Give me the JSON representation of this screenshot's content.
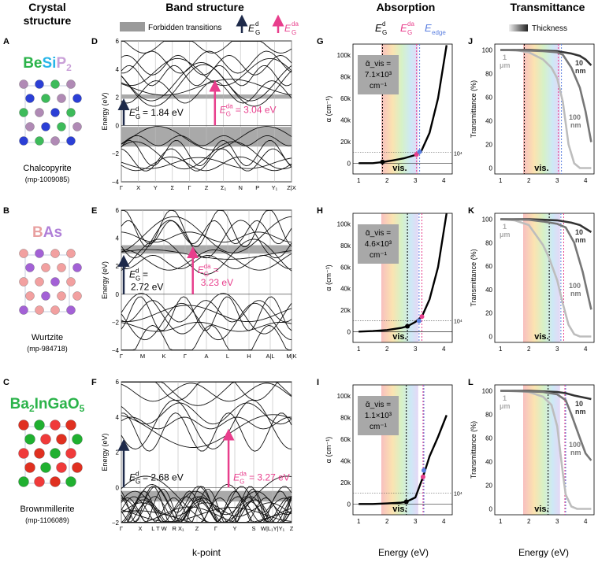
{
  "headers": {
    "crystal": [
      "Crystal",
      "structure"
    ],
    "band": "Band structure",
    "absorption": "Absorption",
    "transmittance": "Transmittance"
  },
  "legend": {
    "forbidden": "Forbidden transitions",
    "eg_d": "E_G^d",
    "eg_da": "E_G^da",
    "e_edge": "E_edge",
    "thickness": "Thickness"
  },
  "colors": {
    "pink": "#e83e8c",
    "navy": "#1e2a4a",
    "blue": "#5b7fe0",
    "gray_band": "#9a9a9a"
  },
  "materials": [
    {
      "letter": "A",
      "formula_parts": [
        [
          "Be",
          "#2bb34a"
        ],
        [
          "Si",
          "#28b5e8"
        ],
        [
          "P",
          "#c9a0d8"
        ],
        [
          "2",
          "#c9a0d8"
        ]
      ],
      "structure": "Chalcopyrite",
      "mp_id": "(mp-1009085)",
      "band_letter": "D",
      "abs_letter": "G",
      "trans_letter": "J",
      "eg_d_text": "= 1.84 eV",
      "eg_da_text": "= 3.04 eV",
      "alpha_lines": [
        "ᾱ_vis =",
        "7.1×10³",
        "cm⁻¹"
      ],
      "ylim": [
        -4,
        6
      ],
      "yticks": [
        "6",
        "4",
        "2",
        "0",
        "−2",
        "−4"
      ],
      "kpoints": [
        "Γ",
        "X",
        "Y",
        "Σ",
        "Γ",
        "Z",
        "Σ₁",
        "N",
        "P",
        "Y₁",
        "Z|X"
      ],
      "eg_d": 1.84,
      "eg_da": 3.04,
      "e_edge": 3.15
    },
    {
      "letter": "B",
      "formula_parts": [
        [
          "B",
          "#e8a0a0"
        ],
        [
          "As",
          "#b07fd8"
        ]
      ],
      "structure": "Wurtzite",
      "mp_id": "(mp-984718)",
      "band_letter": "E",
      "abs_letter": "H",
      "trans_letter": "K",
      "eg_d_text": "=",
      "eg_d_text2": "2.72 eV",
      "eg_da_text": "=",
      "eg_da_text2": "3.23 eV",
      "alpha_lines": [
        "ᾱ_vis =",
        "4.6×10³",
        "cm⁻¹"
      ],
      "ylim": [
        -4,
        6
      ],
      "yticks": [
        "6",
        "4",
        "2",
        "0",
        "−2",
        "−4"
      ],
      "kpoints": [
        "Γ",
        "M",
        "K",
        "Γ",
        "A",
        "L",
        "H",
        "A|L",
        "M|K"
      ],
      "eg_d": 2.72,
      "eg_da": 3.23,
      "e_edge": 3.13
    },
    {
      "letter": "C",
      "formula_parts": [
        [
          "Ba",
          "#2bb34a"
        ],
        [
          "2",
          "#2bb34a"
        ],
        [
          "InGaO",
          "#2bb34a"
        ],
        [
          "5",
          "#2bb34a"
        ]
      ],
      "structure": "Brownmillerite",
      "mp_id": "(mp-1106089)",
      "band_letter": "F",
      "abs_letter": "I",
      "trans_letter": "L",
      "eg_d_text": "= 2.68 eV",
      "eg_da_text": "= 3.27 eV",
      "alpha_lines": [
        "ᾱ_vis =",
        "1.1×10³",
        "cm⁻¹"
      ],
      "ylim": [
        -2,
        6
      ],
      "yticks": [
        "6",
        "4",
        "2",
        "0",
        "−2"
      ],
      "kpoints": [
        "Γ",
        "X",
        "L T W",
        "R X₁",
        "Z",
        "Γ",
        "Y",
        "S",
        "W|L₁Y|Y₁",
        "Z"
      ],
      "eg_d": 2.68,
      "eg_da": 3.27,
      "e_edge": 3.3
    }
  ],
  "axes": {
    "band_ylabel": "Energy (eV)",
    "band_xlabel": "k-point",
    "abs_ylabel": "α (cm⁻¹)",
    "abs_yticks": [
      "100k",
      "80k",
      "60k",
      "40k",
      "20k",
      "0"
    ],
    "abs_ref": "10⁴",
    "trans_ylabel": "Transmittance (%)",
    "trans_yticks": [
      "100",
      "80",
      "60",
      "40",
      "20",
      "0"
    ],
    "energy_xlabel": "Energy (eV)",
    "energy_xticks": [
      "1",
      "2",
      "3",
      "4"
    ],
    "vis": "vis."
  },
  "thickness_labels": [
    [
      "1",
      "μm"
    ],
    [
      "10",
      "nm"
    ],
    [
      "100",
      "nm"
    ]
  ],
  "chart_data": [
    {
      "type": "line",
      "panel": "G",
      "title": "Absorption",
      "xlabel": "Energy (eV)",
      "ylabel": "α (cm⁻¹)",
      "xlim": [
        0.8,
        4.3
      ],
      "ylim": [
        -10000,
        110000
      ],
      "series": [
        {
          "x": [
            1,
            1.5,
            1.84,
            2.2,
            2.6,
            3.0,
            3.2,
            3.5,
            3.8,
            4.1
          ],
          "values": [
            0,
            0,
            1000,
            2500,
            4500,
            7500,
            10500,
            28000,
            60000,
            109000
          ]
        }
      ]
    },
    {
      "type": "line",
      "panel": "H",
      "title": "Absorption",
      "xlabel": "Energy (eV)",
      "ylabel": "α (cm⁻¹)",
      "xlim": [
        0.8,
        4.3
      ],
      "ylim": [
        -10000,
        110000
      ],
      "series": [
        {
          "x": [
            1,
            1.5,
            2.0,
            2.5,
            2.72,
            3.0,
            3.23,
            3.5,
            3.8,
            4.1
          ],
          "values": [
            0,
            500,
            1500,
            3500,
            5000,
            9000,
            14000,
            30000,
            60000,
            110000
          ]
        }
      ]
    },
    {
      "type": "line",
      "panel": "I",
      "title": "Absorption",
      "xlabel": "Energy (eV)",
      "ylabel": "α (cm⁻¹)",
      "xlim": [
        0.8,
        4.3
      ],
      "ylim": [
        -10000,
        110000
      ],
      "series": [
        {
          "x": [
            1,
            1.5,
            2.0,
            2.5,
            2.68,
            3.0,
            3.27,
            3.5,
            3.8,
            4.1
          ],
          "values": [
            0,
            0,
            500,
            1200,
            2000,
            6000,
            25000,
            44000,
            62000,
            82000
          ]
        }
      ]
    },
    {
      "type": "line",
      "panel": "J",
      "title": "Transmittance",
      "xlabel": "Energy (eV)",
      "ylabel": "Transmittance (%)",
      "xlim": [
        0.8,
        4.3
      ],
      "ylim": [
        -5,
        105
      ],
      "series": [
        {
          "name": "1 μm",
          "x": [
            1,
            1.5,
            2,
            2.5,
            2.8,
            3.0,
            3.2,
            3.4,
            3.6,
            3.8,
            4.0,
            4.2
          ],
          "values": [
            100,
            100,
            98,
            92,
            85,
            76,
            56,
            20,
            4,
            0,
            0,
            0
          ]
        },
        {
          "name": "10 nm",
          "x": [
            1,
            2,
            2.5,
            3,
            3.5,
            3.8,
            4.0,
            4.2
          ],
          "values": [
            100,
            100,
            99.5,
            99,
            97,
            95,
            92,
            87
          ]
        },
        {
          "name": "100 nm",
          "x": [
            1,
            2,
            2.5,
            3,
            3.2,
            3.5,
            3.8,
            4.0,
            4.2
          ],
          "values": [
            100,
            99.5,
            99,
            98,
            96,
            85,
            68,
            48,
            22
          ]
        }
      ]
    },
    {
      "type": "line",
      "panel": "K",
      "title": "Transmittance",
      "xlabel": "Energy (eV)",
      "ylabel": "Transmittance (%)",
      "xlim": [
        0.8,
        4.3
      ],
      "ylim": [
        -5,
        105
      ],
      "series": [
        {
          "name": "1 μm",
          "x": [
            1,
            1.5,
            2,
            2.5,
            2.7,
            3.0,
            3.2,
            3.4,
            3.6,
            3.8,
            4.2
          ],
          "values": [
            100,
            99,
            95,
            78,
            68,
            48,
            28,
            10,
            2,
            0,
            0
          ]
        },
        {
          "name": "10 nm",
          "x": [
            1,
            2,
            2.5,
            3,
            3.5,
            3.8,
            4.2
          ],
          "values": [
            100,
            100,
            99.5,
            99,
            97,
            95,
            89
          ]
        },
        {
          "name": "100 nm",
          "x": [
            1,
            2,
            2.5,
            3,
            3.3,
            3.6,
            3.9,
            4.2
          ],
          "values": [
            100,
            99.5,
            98,
            96,
            93,
            80,
            55,
            23
          ]
        }
      ]
    },
    {
      "type": "line",
      "panel": "L",
      "title": "Transmittance",
      "xlabel": "Energy (eV)",
      "ylabel": "Transmittance (%)",
      "xlim": [
        0.8,
        4.3
      ],
      "ylim": [
        -5,
        105
      ],
      "series": [
        {
          "name": "1 μm",
          "x": [
            1,
            1.5,
            2,
            2.5,
            2.8,
            3.0,
            3.2,
            3.3,
            3.5,
            3.7,
            4.2
          ],
          "values": [
            100,
            100,
            99,
            95,
            88,
            70,
            30,
            12,
            2,
            0,
            0
          ]
        },
        {
          "name": "10 nm",
          "x": [
            1,
            2,
            2.5,
            3,
            3.3,
            3.6,
            4.0,
            4.2
          ],
          "values": [
            100,
            100,
            99.5,
            99,
            98,
            96,
            94,
            93
          ]
        },
        {
          "name": "100 nm",
          "x": [
            1,
            2,
            2.5,
            3,
            3.3,
            3.5,
            3.8,
            4.0,
            4.2
          ],
          "values": [
            100,
            99.5,
            99,
            97,
            92,
            80,
            60,
            47,
            41
          ]
        }
      ]
    }
  ]
}
